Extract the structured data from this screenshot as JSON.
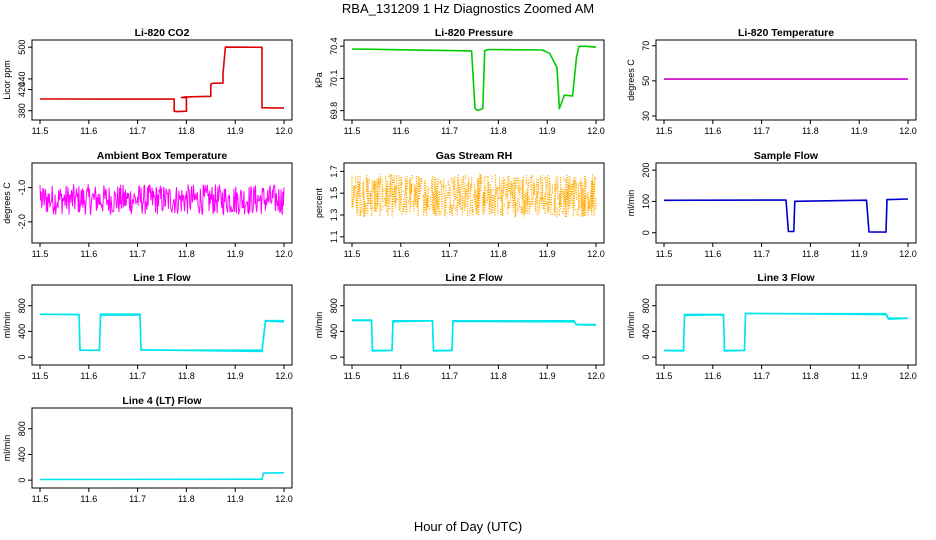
{
  "page": {
    "title": "RBA_131209  1 Hz Diagnostics Zoomed AM",
    "xlabel": "Hour of Day (UTC)"
  },
  "chart_data": [
    {
      "type": "line",
      "title": "Li-820 CO2",
      "ylabel": "Licor ppm",
      "color": "#dd0000",
      "xlim": [
        11.5,
        12.0
      ],
      "ylim": [
        370,
        506
      ],
      "xticks": [
        11.5,
        11.6,
        11.7,
        11.8,
        11.9,
        12.0
      ],
      "yticks": [
        380,
        420,
        440,
        500
      ],
      "x": [
        11.5,
        11.775,
        11.775,
        11.78,
        11.8,
        11.8,
        11.79,
        11.8,
        11.8,
        11.85,
        11.85,
        11.855,
        11.875,
        11.875,
        11.88,
        11.955,
        11.955,
        11.975,
        12.0
      ],
      "y": [
        402,
        402,
        379,
        378,
        379,
        405,
        405,
        406,
        406,
        407,
        430,
        432,
        432,
        450,
        500,
        500,
        386,
        385,
        385
      ],
      "noise": 0.4
    },
    {
      "type": "line",
      "title": "Li-820 Pressure",
      "ylabel": "kPa",
      "color": "#00cc00",
      "xlim": [
        11.5,
        12.0
      ],
      "ylim": [
        69.75,
        70.42
      ],
      "xticks": [
        11.5,
        11.6,
        11.7,
        11.8,
        11.9,
        12.0
      ],
      "yticks": [
        69.8,
        70.1,
        70.4
      ],
      "yticklabels": [
        "69.8",
        "70.1",
        "70.4"
      ],
      "x": [
        11.5,
        11.745,
        11.752,
        11.758,
        11.768,
        11.772,
        11.78,
        11.89,
        11.905,
        11.92,
        11.925,
        11.935,
        11.952,
        11.96,
        11.965,
        11.98,
        12.0
      ],
      "y": [
        70.37,
        70.36,
        69.82,
        69.8,
        69.82,
        70.36,
        70.37,
        70.36,
        70.33,
        70.2,
        69.82,
        69.94,
        69.94,
        70.3,
        70.4,
        70.4,
        70.39
      ],
      "noise": 0.005
    },
    {
      "type": "line",
      "title": "Li-820 Temperature",
      "ylabel": "degrees C",
      "color": "#cc00cc",
      "xlim": [
        11.5,
        12.0
      ],
      "ylim": [
        30,
        71
      ],
      "xticks": [
        11.5,
        11.6,
        11.7,
        11.8,
        11.9,
        12.0
      ],
      "yticks": [
        30,
        50,
        70
      ],
      "x": [
        11.5,
        12.0
      ],
      "y": [
        51,
        51
      ],
      "noise": 0
    },
    {
      "type": "line",
      "title": "Ambient Box Temperature",
      "ylabel": "degrees C",
      "color": "#ff00ff",
      "xlim": [
        11.5,
        12.0
      ],
      "ylim": [
        -2.5,
        -0.4
      ],
      "xticks": [
        11.5,
        11.6,
        11.7,
        11.8,
        11.9,
        12.0
      ],
      "yticks": [
        -2.0,
        -1.0
      ],
      "yticklabels": [
        "-2.0",
        "-1.0"
      ],
      "x": [
        11.5,
        12.0
      ],
      "y": [
        -1.35,
        -1.35
      ],
      "noise": 0.45,
      "noise_style": "dense"
    },
    {
      "type": "scatter",
      "title": "Gas Stream RH",
      "ylabel": "percent",
      "color": "#ffaa00",
      "xlim": [
        11.5,
        12.0
      ],
      "ylim": [
        1.08,
        1.74
      ],
      "xticks": [
        11.5,
        11.6,
        11.7,
        11.8,
        11.9,
        12.0
      ],
      "yticks": [
        1.1,
        1.3,
        1.5,
        1.7
      ],
      "yticklabels": [
        "1.1",
        "1.3",
        "1.5",
        "1.7"
      ],
      "x": [
        11.5,
        12.0
      ],
      "y": [
        1.48,
        1.48
      ],
      "noise": 0.2,
      "noise_style": "dots"
    },
    {
      "type": "line",
      "title": "Sample Flow",
      "ylabel": "ml/min",
      "color": "#0000cc",
      "xlim": [
        11.5,
        12.0
      ],
      "ylim": [
        -20,
        210
      ],
      "xticks": [
        11.5,
        11.6,
        11.7,
        11.8,
        11.9,
        12.0
      ],
      "yticks": [
        0,
        100,
        200
      ],
      "x": [
        11.5,
        11.75,
        11.755,
        11.765,
        11.765,
        11.985,
        11.988
      ],
      "y": [
        105,
        102,
        2,
        2,
        103,
        103,
        105
      ],
      "segments": [
        [
          11.5,
          105
        ],
        [
          11.75,
          103
        ],
        [
          11.755,
          3
        ],
        [
          11.766,
          3
        ],
        [
          11.768,
          102
        ],
        [
          11.915,
          102
        ],
        [
          11.92,
          3
        ],
        [
          11.955,
          3
        ],
        [
          11.957,
          104
        ],
        [
          12.0,
          106
        ]
      ],
      "noise": 2
    },
    {
      "type": "line",
      "title": "Line 1 Flow",
      "ylabel": "ml/min",
      "color": "#00e5ee",
      "xlim": [
        11.5,
        12.0
      ],
      "ylim": [
        -60,
        1060
      ],
      "xticks": [
        11.5,
        11.6,
        11.7,
        11.8,
        11.9,
        12.0
      ],
      "yticks": [
        0,
        400,
        800
      ],
      "segments": [
        [
          11.5,
          660
        ],
        [
          11.58,
          650
        ],
        [
          11.582,
          100
        ],
        [
          11.622,
          100
        ],
        [
          11.624,
          660
        ],
        [
          11.705,
          660
        ],
        [
          11.707,
          100
        ],
        [
          11.955,
          100
        ],
        [
          11.962,
          560
        ],
        [
          12.0,
          560
        ]
      ],
      "noise": 15
    },
    {
      "type": "line",
      "title": "Line 2 Flow",
      "ylabel": "ml/min",
      "color": "#00e5ee",
      "xlim": [
        11.5,
        12.0
      ],
      "ylim": [
        -60,
        1060
      ],
      "xticks": [
        11.5,
        11.6,
        11.7,
        11.8,
        11.9,
        12.0
      ],
      "yticks": [
        0,
        400,
        800
      ],
      "segments": [
        [
          11.5,
          570
        ],
        [
          11.54,
          570
        ],
        [
          11.542,
          100
        ],
        [
          11.582,
          100
        ],
        [
          11.584,
          560
        ],
        [
          11.665,
          560
        ],
        [
          11.667,
          100
        ],
        [
          11.705,
          100
        ],
        [
          11.707,
          560
        ],
        [
          11.955,
          560
        ],
        [
          11.96,
          500
        ],
        [
          12.0,
          500
        ]
      ],
      "noise": 12
    },
    {
      "type": "line",
      "title": "Line 3 Flow",
      "ylabel": "ml/min",
      "color": "#00e5ee",
      "xlim": [
        11.5,
        12.0
      ],
      "ylim": [
        -60,
        1060
      ],
      "xticks": [
        11.5,
        11.6,
        11.7,
        11.8,
        11.9,
        12.0
      ],
      "yticks": [
        0,
        400,
        800
      ],
      "segments": [
        [
          11.5,
          100
        ],
        [
          11.54,
          100
        ],
        [
          11.542,
          660
        ],
        [
          11.622,
          660
        ],
        [
          11.624,
          100
        ],
        [
          11.665,
          100
        ],
        [
          11.667,
          670
        ],
        [
          11.955,
          670
        ],
        [
          11.96,
          600
        ],
        [
          12.0,
          600
        ]
      ],
      "noise": 12
    },
    {
      "type": "line",
      "title": "Line 4 (LT) Flow",
      "ylabel": "ml/min",
      "color": "#00e5ee",
      "xlim": [
        11.5,
        12.0
      ],
      "ylim": [
        -60,
        1060
      ],
      "xticks": [
        11.5,
        11.6,
        11.7,
        11.8,
        11.9,
        12.0
      ],
      "yticks": [
        0,
        400,
        800
      ],
      "segments": [
        [
          11.5,
          10
        ],
        [
          11.955,
          12
        ],
        [
          11.958,
          110
        ],
        [
          12.0,
          115
        ]
      ],
      "noise": 2
    }
  ]
}
